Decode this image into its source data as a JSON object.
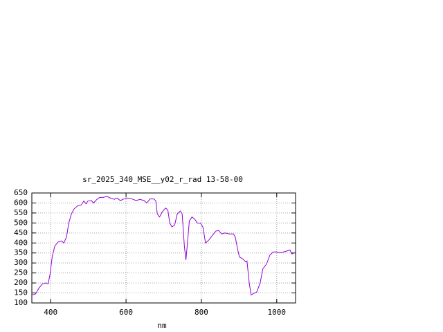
{
  "chart_data": {
    "type": "line",
    "title": "sr_2025_340_MSE__y02_r_rad 13-58-00",
    "x_label": "nm",
    "color": "#9400d3",
    "grid": true,
    "xlim": [
      350,
      1050
    ],
    "xticks": [
      400,
      600,
      800,
      1000
    ],
    "ylim": [
      100,
      650
    ],
    "yticks": [
      100,
      150,
      200,
      250,
      300,
      350,
      400,
      450,
      500,
      550,
      600,
      650
    ],
    "x": [
      350,
      360,
      369,
      378,
      387,
      393,
      398,
      404,
      411,
      420,
      429,
      435,
      442,
      448,
      455,
      462,
      471,
      481,
      488,
      494,
      499,
      508,
      514,
      521,
      530,
      540,
      549,
      558,
      569,
      576,
      585,
      594,
      605,
      616,
      627,
      637,
      648,
      655,
      664,
      674,
      679,
      683,
      689,
      696,
      705,
      711,
      716,
      722,
      729,
      736,
      744,
      749,
      755,
      759,
      764,
      768,
      775,
      782,
      789,
      798,
      804,
      811,
      820,
      830,
      839,
      846,
      854,
      863,
      874,
      885,
      890,
      896,
      901,
      910,
      918,
      921,
      927,
      932,
      941,
      947,
      956,
      963,
      973,
      982,
      991,
      1000,
      1009,
      1018,
      1027,
      1035,
      1040,
      1046
    ],
    "values": [
      140,
      145,
      175,
      195,
      200,
      195,
      240,
      330,
      385,
      405,
      410,
      400,
      430,
      500,
      545,
      570,
      585,
      590,
      610,
      595,
      610,
      612,
      600,
      615,
      628,
      628,
      633,
      625,
      618,
      625,
      612,
      620,
      625,
      620,
      612,
      618,
      612,
      600,
      620,
      620,
      610,
      545,
      530,
      555,
      575,
      565,
      500,
      480,
      490,
      545,
      560,
      545,
      380,
      315,
      420,
      510,
      530,
      520,
      500,
      498,
      480,
      400,
      415,
      440,
      460,
      462,
      445,
      450,
      445,
      445,
      430,
      370,
      330,
      320,
      305,
      310,
      200,
      140,
      150,
      155,
      200,
      270,
      295,
      340,
      355,
      355,
      350,
      355,
      360,
      365,
      345,
      350
    ]
  }
}
